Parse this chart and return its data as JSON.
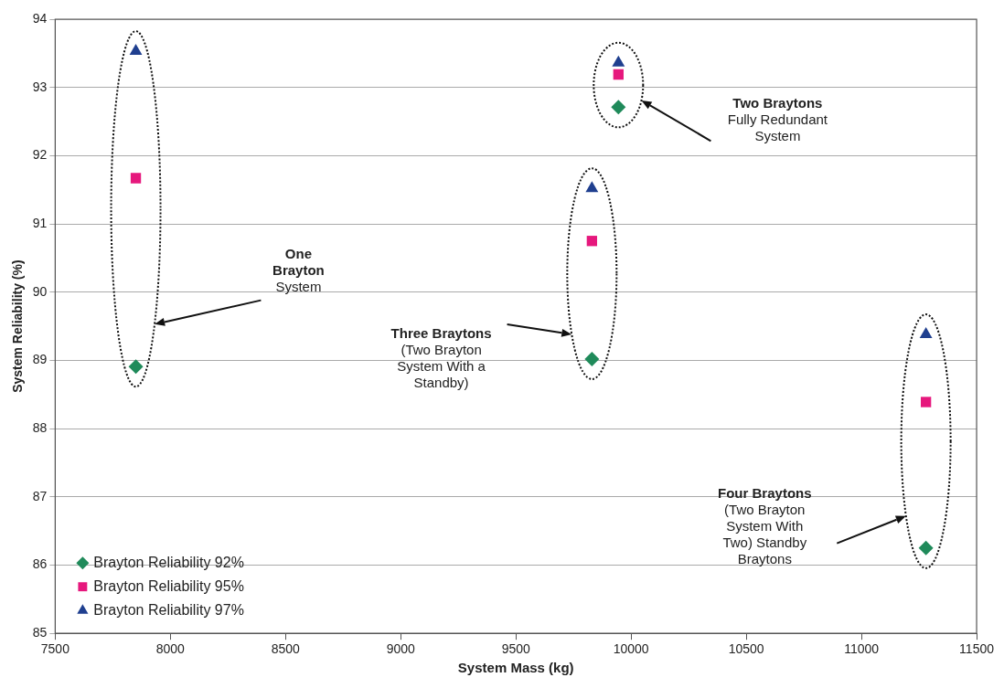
{
  "chart_data": {
    "type": "scatter",
    "xlabel": "System Mass (kg)",
    "ylabel": "System Reliability (%)",
    "x": [
      7850,
      9830,
      9945,
      11280
    ],
    "series": [
      {
        "name": "Brayton Reliability 92%",
        "color": "#1f8a5a",
        "marker": "diamond",
        "values": [
          88.91,
          89.02,
          92.71,
          86.25
        ]
      },
      {
        "name": "Brayton Reliability 95%",
        "color": "#e6187d",
        "marker": "square",
        "values": [
          91.67,
          90.75,
          93.19,
          88.39
        ]
      },
      {
        "name": "Brayton Reliability 97%",
        "color": "#1f3f8f",
        "marker": "triangle",
        "values": [
          93.53,
          91.52,
          93.36,
          89.38
        ]
      }
    ],
    "xlim": [
      7500,
      11500
    ],
    "xticks": [
      7500,
      8000,
      8500,
      9000,
      9500,
      10000,
      10500,
      11000,
      11500
    ],
    "ylim": [
      85,
      94
    ],
    "yticks": [
      85,
      86,
      87,
      88,
      89,
      90,
      91,
      92,
      93,
      94
    ],
    "grid": "y",
    "legend": "bottom left",
    "annotations": [
      "One\nBrayton\nSystem",
      "Two Braytons\nFully Redundant\nSystem",
      "Three Braytons\n(Two Brayton\nSystem With a\nStandby)",
      "Four Braytons\n(Two Brayton\nSystem With\nTwo) Standby\nBraytons"
    ]
  }
}
